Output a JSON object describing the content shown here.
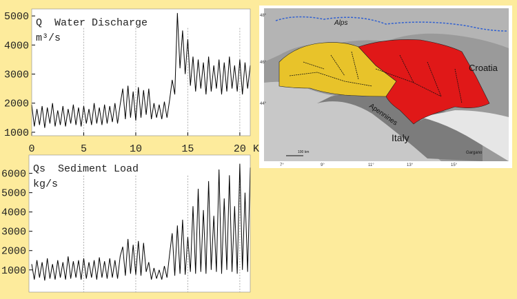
{
  "chart_data": [
    {
      "type": "line",
      "title": "Q  Water Discharge",
      "ylabel": "m³/s",
      "xlabel": "KyBP",
      "color": "#000000",
      "x": [
        0,
        0.25,
        0.5,
        0.75,
        1,
        1.25,
        1.5,
        1.75,
        2,
        2.25,
        2.5,
        2.75,
        3,
        3.25,
        3.5,
        3.75,
        4,
        4.25,
        4.5,
        4.75,
        5,
        5.25,
        5.5,
        5.75,
        6,
        6.25,
        6.5,
        6.75,
        7,
        7.25,
        7.5,
        7.75,
        8,
        8.25,
        8.5,
        8.75,
        9,
        9.25,
        9.5,
        9.75,
        10,
        10.25,
        10.5,
        10.75,
        11,
        11.25,
        11.5,
        11.75,
        12,
        12.25,
        12.5,
        12.75,
        13,
        13.25,
        13.5,
        13.75,
        14,
        14.25,
        14.5,
        14.75,
        15,
        15.25,
        15.5,
        15.75,
        16,
        16.25,
        16.5,
        16.75,
        17,
        17.25,
        17.5,
        17.75,
        18,
        18.25,
        18.5,
        18.75,
        19,
        19.25,
        19.5,
        19.75,
        20,
        20.25,
        20.5,
        20.75,
        21
      ],
      "values": [
        1950,
        1200,
        1800,
        1250,
        1900,
        1150,
        1850,
        1300,
        2000,
        1200,
        1750,
        1250,
        1900,
        1200,
        1800,
        1300,
        1950,
        1250,
        1850,
        1200,
        1900,
        1300,
        1800,
        1250,
        2000,
        1300,
        1850,
        1250,
        1950,
        1300,
        1900,
        1350,
        2000,
        1300,
        1950,
        2500,
        1450,
        2600,
        1500,
        2400,
        1400,
        2550,
        1500,
        2450,
        1600,
        2500,
        1450,
        2000,
        1500,
        1950,
        1450,
        2050,
        1500,
        2100,
        2800,
        2300,
        5100,
        3200,
        4500,
        3000,
        4200,
        2600,
        3600,
        2400,
        3500,
        2500,
        3400,
        2300,
        3600,
        2400,
        3300,
        2500,
        3500,
        2300,
        3400,
        2400,
        3600,
        2500,
        3300,
        2400,
        3500,
        2300,
        3400,
        2500,
        3300
      ],
      "xlim": [
        0,
        21
      ],
      "xticks": [
        0,
        5,
        10,
        15,
        20
      ],
      "ylim": [
        880,
        5240
      ],
      "yticks": [
        1000,
        2000,
        3000,
        4000,
        5000
      ]
    },
    {
      "type": "line",
      "title": "Qs  Sediment Load",
      "ylabel": "kg/s",
      "color": "#000000",
      "x": [
        0,
        0.25,
        0.5,
        0.75,
        1,
        1.25,
        1.5,
        1.75,
        2,
        2.25,
        2.5,
        2.75,
        3,
        3.25,
        3.5,
        3.75,
        4,
        4.25,
        4.5,
        4.75,
        5,
        5.25,
        5.5,
        5.75,
        6,
        6.25,
        6.5,
        6.75,
        7,
        7.25,
        7.5,
        7.75,
        8,
        8.25,
        8.5,
        8.75,
        9,
        9.25,
        9.5,
        9.75,
        10,
        10.25,
        10.5,
        10.75,
        11,
        11.25,
        11.5,
        11.75,
        12,
        12.25,
        12.5,
        12.75,
        13,
        13.25,
        13.5,
        13.75,
        14,
        14.25,
        14.5,
        14.75,
        15,
        15.25,
        15.5,
        15.75,
        16,
        16.25,
        16.5,
        16.75,
        17,
        17.25,
        17.5,
        17.75,
        18,
        18.25,
        18.5,
        18.75,
        19,
        19.25,
        19.5,
        19.75,
        20,
        20.25,
        20.5,
        20.75,
        21
      ],
      "values": [
        1300,
        500,
        1500,
        600,
        1400,
        450,
        1600,
        550,
        1300,
        500,
        1500,
        600,
        1400,
        500,
        1700,
        550,
        1450,
        600,
        1500,
        500,
        1600,
        550,
        1400,
        600,
        1500,
        500,
        1650,
        600,
        1450,
        550,
        1600,
        600,
        1500,
        550,
        1700,
        2200,
        700,
        2600,
        800,
        2300,
        750,
        2500,
        700,
        2400,
        900,
        1400,
        500,
        1100,
        550,
        1000,
        500,
        1200,
        600,
        1800,
        2900,
        700,
        3300,
        800,
        3600,
        750,
        2700,
        900,
        4300,
        800,
        5200,
        900,
        4100,
        800,
        5600,
        1000,
        3800,
        900,
        6200,
        800,
        4700,
        1000,
        5900,
        900,
        4300,
        800,
        6500,
        1000,
        5000,
        900,
        6300
      ],
      "xlim": [
        0,
        21
      ],
      "ylim": [
        -150,
        6950
      ],
      "yticks": [
        1000,
        2000,
        3000,
        4000,
        5000,
        6000
      ]
    }
  ],
  "map": {
    "labels": {
      "alps": "Alps",
      "croatia": "Croatia",
      "apennines": "Apennines",
      "italy": "Italy",
      "gargano": "Gargano",
      "scale": "100 km"
    },
    "lon_labels": [
      "7°",
      "9°",
      "11°",
      "13°",
      "15°"
    ],
    "lat_labels": [
      "48°",
      "46°",
      "44°"
    ]
  }
}
